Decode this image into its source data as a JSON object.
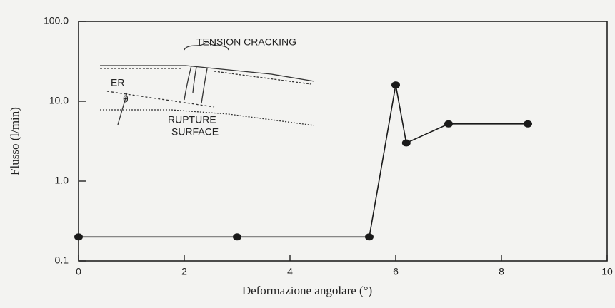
{
  "chart_data": {
    "type": "line",
    "x_label": "Deformazione angolare (°)",
    "y_label": "Flusso (l/min)",
    "x": [
      0,
      3,
      5.5,
      6,
      6.2,
      7,
      8.5
    ],
    "series": [
      {
        "color": "#1a1a1a",
        "values": [
          0.2,
          0.2,
          0.2,
          16,
          3,
          5.2,
          5.2
        ]
      }
    ],
    "xlim": [
      0,
      10
    ],
    "xticks": [
      0,
      2,
      4,
      6,
      8,
      10
    ],
    "ylim": [
      0.1,
      100
    ],
    "yticks": [
      0.1,
      {
        "value": 1,
        "label": "1.0"
      },
      {
        "value": 10,
        "label": "10.0"
      },
      {
        "value": 100,
        "label": "100.0"
      }
    ],
    "log_y": true,
    "annotations": [
      "TENSION CRACKING",
      "ER",
      "θ",
      "RUPTURE",
      "SURFACE"
    ]
  }
}
